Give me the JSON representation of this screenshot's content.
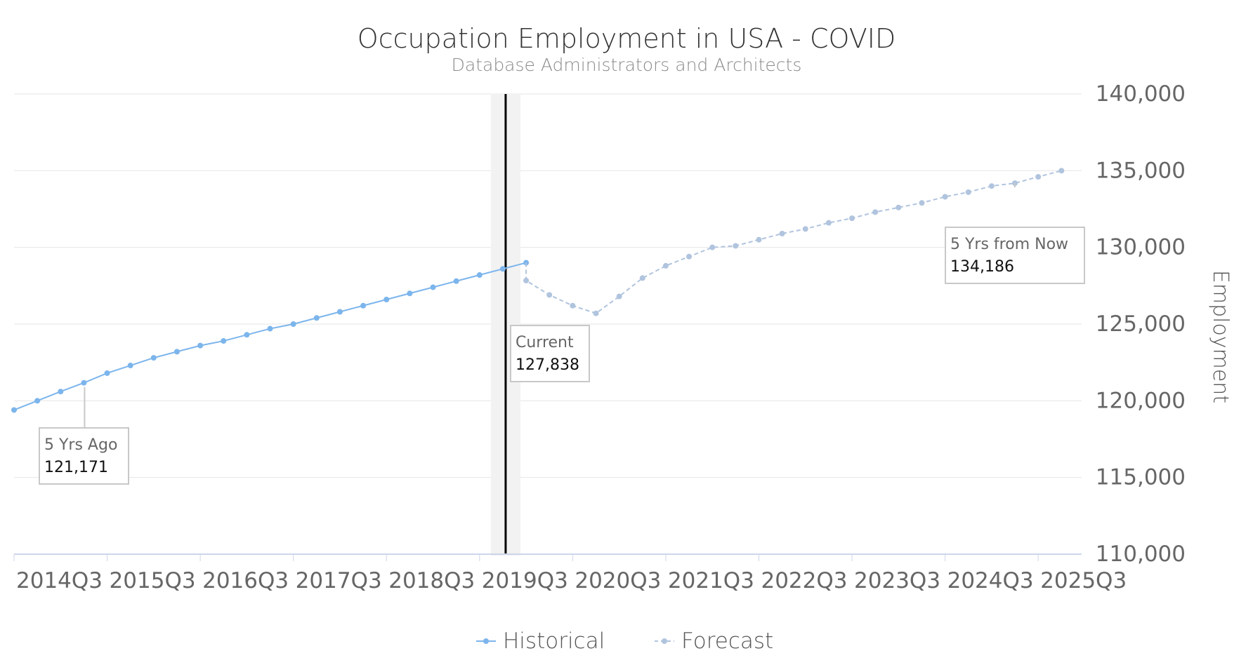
{
  "chart_data": {
    "type": "line",
    "title": "Occupation Employment in USA - COVID",
    "subtitle": "Database Administrators and Architects",
    "ylabel": "Employment",
    "xlabel": "",
    "ylim": [
      110000,
      140000
    ],
    "y_ticks": [
      110000,
      115000,
      120000,
      125000,
      130000,
      135000,
      140000
    ],
    "y_tick_labels": [
      "110,000",
      "115,000",
      "120,000",
      "125,000",
      "130,000",
      "135,000",
      "140,000"
    ],
    "x_tick_labels": [
      "2014Q3",
      "2015Q3",
      "2016Q3",
      "2017Q3",
      "2018Q3",
      "2019Q3",
      "2020Q3",
      "2021Q3",
      "2022Q3",
      "2023Q3",
      "2024Q3",
      "2025Q3"
    ],
    "x_start": "2014Q3",
    "grid": true,
    "legend_position": "bottom-center",
    "current_period": "2019Q4",
    "series": [
      {
        "name": "Historical",
        "color": "#7cb5ec",
        "style": "solid",
        "start": "2014Q3",
        "values": [
          119400,
          120000,
          120600,
          121171,
          121800,
          122300,
          122800,
          123200,
          123600,
          123900,
          124300,
          124700,
          125000,
          125400,
          125800,
          126200,
          126600,
          127000,
          127400,
          127800,
          128200,
          128600,
          129000
        ]
      },
      {
        "name": "Forecast",
        "color": "#b0c4de",
        "style": "dashed",
        "start": "2020Q1",
        "values": [
          127838,
          126900,
          126200,
          125700,
          126800,
          128000,
          128800,
          129400,
          130000,
          130100,
          130500,
          130900,
          131200,
          131600,
          131900,
          132300,
          132600,
          132900,
          133300,
          133600,
          134000,
          134186,
          134600,
          135000
        ]
      }
    ],
    "annotations": [
      {
        "label": "5 Yrs Ago",
        "value": "121,171",
        "period": "2015Q2"
      },
      {
        "label": "Current",
        "value": "127,838",
        "period": "2020Q1"
      },
      {
        "label": "5 Yrs from Now",
        "value": "134,186",
        "period": "2025Q2"
      }
    ]
  },
  "colors": {
    "historical": "#7cb5ec",
    "forecast": "#b0c4de",
    "grid": "#e6e6e6",
    "axis": "#ccd6eb",
    "current_band": "#f2f2f2",
    "current_line": "#000000",
    "text": "#333333",
    "muted_text": "#666666"
  }
}
